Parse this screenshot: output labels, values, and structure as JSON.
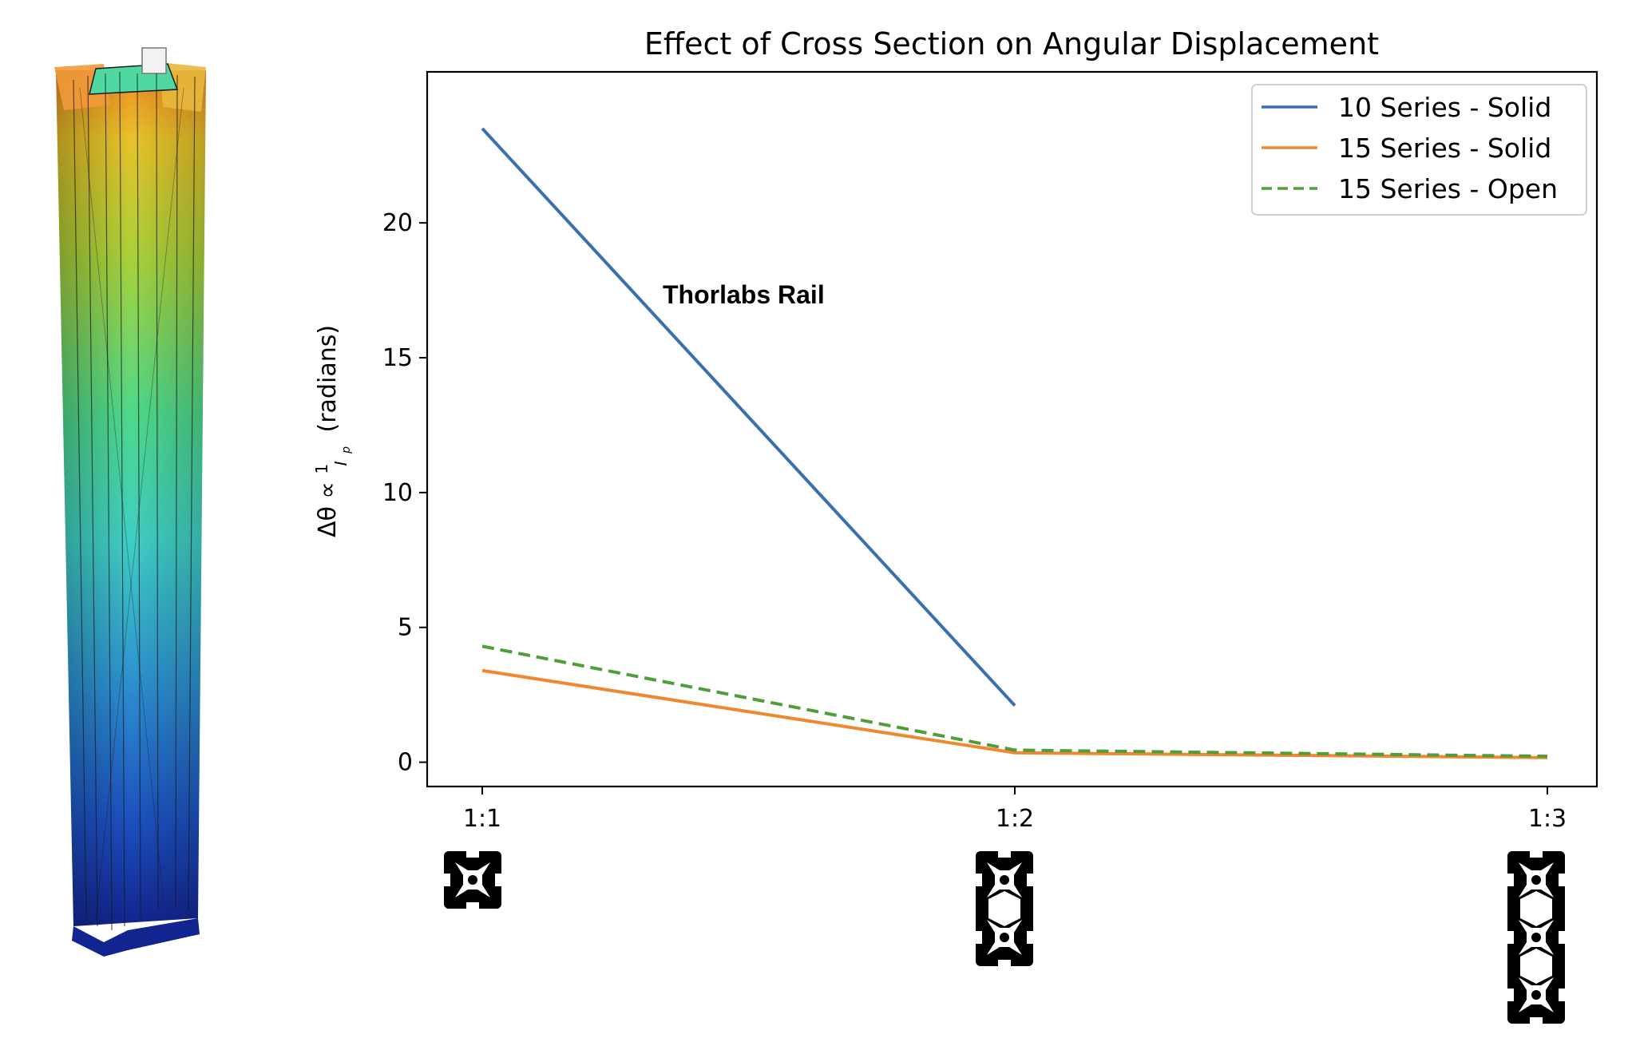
{
  "chart_data": {
    "type": "line",
    "title": "Effect of Cross Section on Angular Displacement",
    "xlabel": "",
    "ylabel": "(radians)",
    "ylabel_math": {
      "prefix": "Δθ ∝ ",
      "numerator": "1",
      "denominator": "I",
      "subscript": "p"
    },
    "categories": [
      "1:1",
      "1:2",
      "1:3"
    ],
    "yticks": [
      0,
      5,
      10,
      15,
      20
    ],
    "ylim": [
      -0.9,
      25.6
    ],
    "grid": false,
    "legend_position": "top-right",
    "series": [
      {
        "name": "10 Series - Solid",
        "values": [
          23.5,
          2.1,
          null
        ],
        "color": "#3a6fb0",
        "style": "solid"
      },
      {
        "name": "15 Series - Solid",
        "values": [
          3.4,
          0.35,
          0.17
        ],
        "color": "#f0882f",
        "style": "solid"
      },
      {
        "name": "15 Series - Open",
        "values": [
          4.3,
          0.45,
          0.22
        ],
        "color": "#4f9e3a",
        "style": "dashed"
      }
    ],
    "annotations": [
      {
        "text": "Thorlabs Rail",
        "x": "1:1",
        "y": 16.5
      }
    ]
  },
  "icons": {
    "left_image": "twisted-extrusion-fea-render",
    "cross_sections": [
      "profile-1x1-icon",
      "profile-1x2-icon",
      "profile-1x3-icon"
    ]
  }
}
